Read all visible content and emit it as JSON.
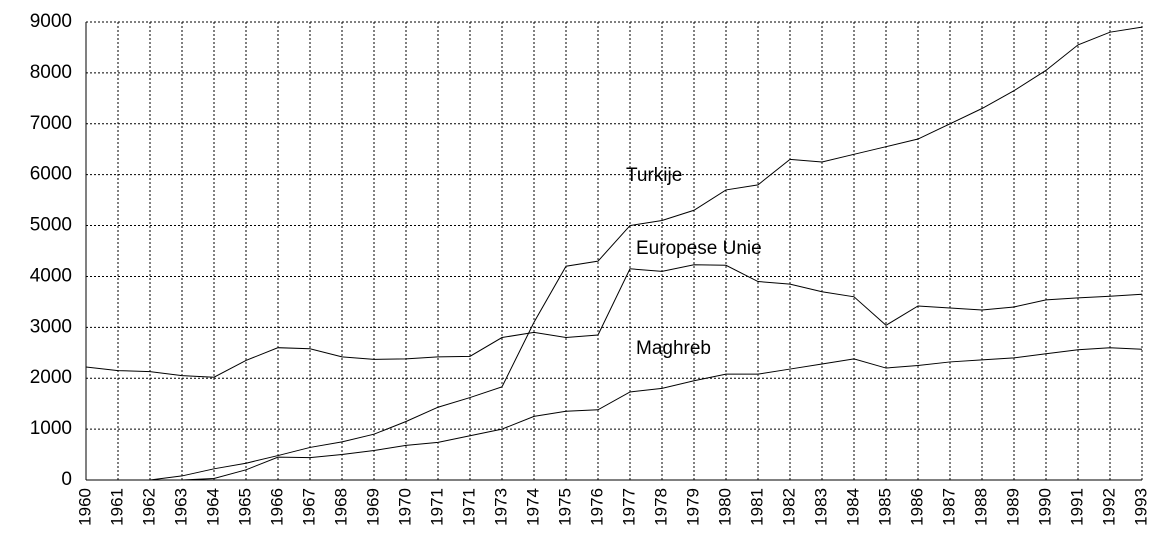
{
  "chart_data": {
    "type": "line",
    "categories": [
      "1960",
      "1961",
      "1962",
      "1963",
      "1964",
      "1965",
      "1966",
      "1967",
      "1968",
      "1969",
      "1970",
      "1971",
      "1971",
      "1973",
      "1974",
      "1975",
      "1976",
      "1977",
      "1978",
      "1979",
      "1980",
      "1981",
      "1982",
      "1983",
      "1984",
      "1985",
      "1986",
      "1987",
      "1988",
      "1989",
      "1990",
      "1991",
      "1992",
      "1993"
    ],
    "series": [
      {
        "name": "Turkije",
        "color": "#000000",
        "values": [
          0,
          0,
          0,
          80,
          220,
          330,
          480,
          640,
          750,
          900,
          1150,
          1430,
          1620,
          1830,
          3100,
          4200,
          4300,
          5000,
          5100,
          5300,
          5700,
          5800,
          6300,
          6250,
          6400,
          6550,
          6700,
          7000,
          7300,
          7650,
          8050,
          8550,
          8800,
          8900
        ]
      },
      {
        "name": "Europese Unie",
        "color": "#000000",
        "values": [
          2220,
          2150,
          2130,
          2050,
          2020,
          2350,
          2600,
          2580,
          2420,
          2370,
          2380,
          2420,
          2430,
          2800,
          2900,
          2800,
          2850,
          4150,
          4100,
          4230,
          4220,
          3900,
          3850,
          3700,
          3600,
          3040,
          3420,
          3380,
          3340,
          3400,
          3540,
          3580,
          3610,
          3650
        ]
      },
      {
        "name": "Maghreb",
        "color": "#000000",
        "values": [
          0,
          0,
          0,
          0,
          30,
          200,
          450,
          440,
          500,
          580,
          680,
          740,
          870,
          1000,
          1250,
          1350,
          1380,
          1730,
          1800,
          1950,
          2080,
          2080,
          2180,
          2280,
          2380,
          2200,
          2250,
          2320,
          2360,
          2400,
          2480,
          2560,
          2600,
          2570
        ]
      }
    ],
    "ylim": [
      0,
      9000
    ],
    "yticks": [
      0,
      1000,
      2000,
      3000,
      4000,
      5000,
      6000,
      7000,
      8000,
      9000
    ],
    "grid": true
  }
}
